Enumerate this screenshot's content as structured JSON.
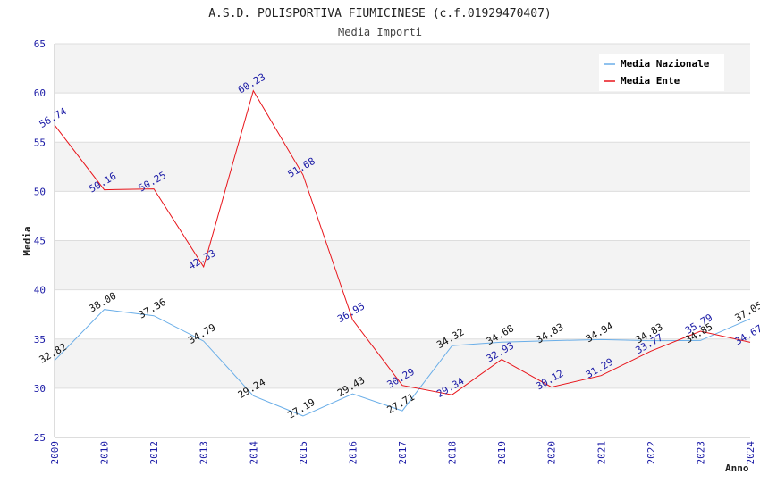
{
  "chart_data": {
    "type": "line",
    "title": "A.S.D. POLISPORTIVA FIUMICINESE (c.f.01929470407)",
    "subtitle": "Media Importi",
    "xlabel": "Anno",
    "ylabel": "Media",
    "ylim": [
      25,
      65
    ],
    "yticks": [
      "25",
      "30",
      "35",
      "40",
      "45",
      "50",
      "55",
      "60",
      "65"
    ],
    "grid": true,
    "legend_position": "top-right",
    "categories": [
      "2009",
      "2010",
      "2012",
      "2013",
      "2014",
      "2015",
      "2016",
      "2017",
      "2018",
      "2019",
      "2020",
      "2021",
      "2022",
      "2023",
      "2024"
    ],
    "series": [
      {
        "name": "Media Nazionale",
        "color": "#6aaee8",
        "values": [
          32.82,
          38.0,
          37.36,
          34.79,
          29.24,
          27.19,
          29.43,
          27.71,
          34.32,
          34.68,
          34.83,
          34.94,
          34.83,
          34.85,
          37.05
        ],
        "labels": [
          "32.82",
          "38.00",
          "37.36",
          "34.79",
          "29.24",
          "27.19",
          "29.43",
          "27.71",
          "34.32",
          "34.68",
          "34.83",
          "34.94",
          "34.83",
          "34.85",
          "37.05"
        ]
      },
      {
        "name": "Media Ente",
        "color": "#e8141a",
        "values": [
          56.74,
          50.16,
          50.25,
          42.33,
          60.23,
          51.68,
          36.95,
          30.29,
          29.34,
          32.93,
          30.12,
          31.29,
          33.77,
          35.79,
          34.67
        ],
        "labels": [
          "56.74",
          "50.16",
          "50.25",
          "42.33",
          "60.23",
          "51.68",
          "36.95",
          "30.29",
          "29.34",
          "32.93",
          "30.12",
          "31.29",
          "33.77",
          "35.79",
          "34.67"
        ]
      }
    ]
  }
}
